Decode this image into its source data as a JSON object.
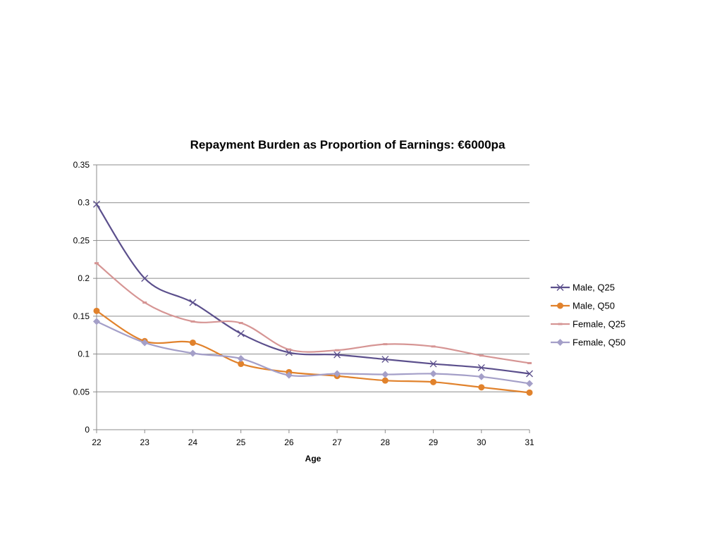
{
  "chart_data": {
    "type": "line",
    "title": "Repayment Burden as Proportion of Earnings: €6000pa",
    "xlabel": "Age",
    "ylabel": "",
    "x": [
      22,
      23,
      24,
      25,
      26,
      27,
      28,
      29,
      30,
      31
    ],
    "xlim": [
      22,
      31
    ],
    "ylim": [
      0,
      0.35
    ],
    "y_ticks": [
      "0",
      "0.05",
      "0.1",
      "0.15",
      "0.2",
      "0.25",
      "0.3",
      "0.35"
    ],
    "x_ticks": [
      "22",
      "23",
      "24",
      "25",
      "26",
      "27",
      "28",
      "29",
      "30",
      "31"
    ],
    "grid": true,
    "legend_position": "right",
    "smooth": true,
    "series": [
      {
        "name": "Male, Q25",
        "color": "#5b4f8c",
        "marker": "x",
        "values": [
          0.298,
          0.2,
          0.168,
          0.127,
          0.102,
          0.099,
          0.093,
          0.087,
          0.082,
          0.074
        ]
      },
      {
        "name": "Male, Q50",
        "color": "#e1822c",
        "marker": "circle",
        "values": [
          0.157,
          0.117,
          0.115,
          0.087,
          0.076,
          0.071,
          0.065,
          0.063,
          0.056,
          0.049
        ]
      },
      {
        "name": "Female, Q25",
        "color": "#d69594",
        "marker": "dash",
        "values": [
          0.22,
          0.168,
          0.143,
          0.141,
          0.106,
          0.105,
          0.113,
          0.11,
          0.098,
          0.088
        ]
      },
      {
        "name": "Female, Q50",
        "color": "#a49fc8",
        "marker": "diamond",
        "values": [
          0.143,
          0.115,
          0.101,
          0.094,
          0.072,
          0.074,
          0.073,
          0.074,
          0.07,
          0.061
        ]
      }
    ]
  }
}
